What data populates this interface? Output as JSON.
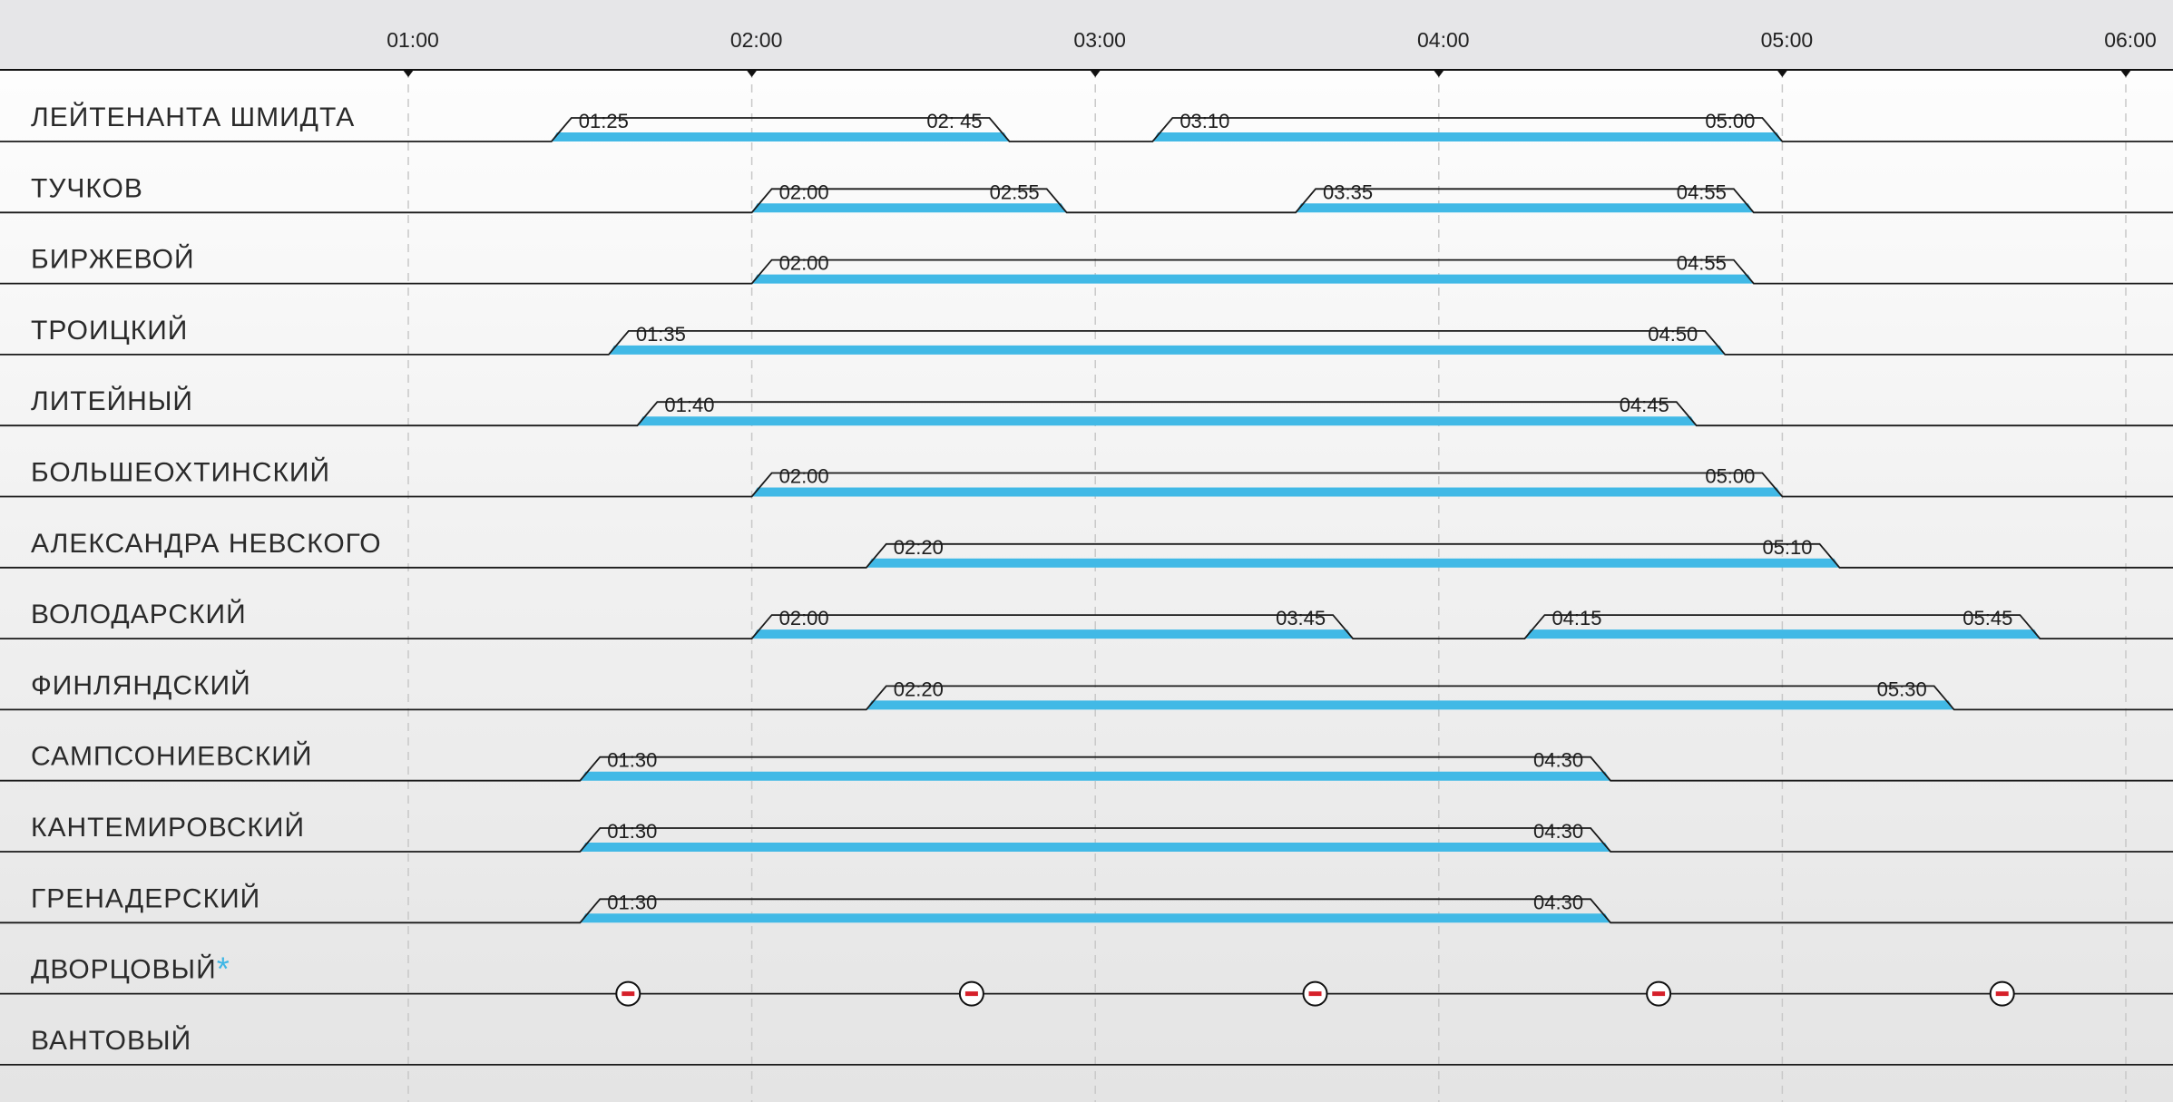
{
  "colors": {
    "bar": "#41b9e6",
    "accent": "#3fb6e5",
    "mark": "#d6202a"
  },
  "chart_data": {
    "type": "gantt",
    "x_ticks": [
      "01:00",
      "02:00",
      "03:00",
      "04:00",
      "05:00",
      "06:00"
    ],
    "rows": [
      {
        "name": "ЛЕЙТЕНАНТА ШМИДТА",
        "intervals": [
          {
            "open": 1.4167,
            "close": 2.75,
            "open_label": "01:25",
            "close_label": "02: 45"
          },
          {
            "open": 3.1667,
            "close": 5.0,
            "open_label": "03:10",
            "close_label": "05:00"
          }
        ]
      },
      {
        "name": "ТУЧКОВ",
        "intervals": [
          {
            "open": 2.0,
            "close": 2.9167,
            "open_label": "02:00",
            "close_label": "02:55"
          },
          {
            "open": 3.5833,
            "close": 4.9167,
            "open_label": "03:35",
            "close_label": "04:55"
          }
        ]
      },
      {
        "name": "БИРЖЕВОЙ",
        "intervals": [
          {
            "open": 2.0,
            "close": 4.9167,
            "open_label": "02:00",
            "close_label": "04:55"
          }
        ]
      },
      {
        "name": "ТРОИЦКИЙ",
        "intervals": [
          {
            "open": 1.5833,
            "close": 4.8333,
            "open_label": "01:35",
            "close_label": "04:50"
          }
        ]
      },
      {
        "name": "ЛИТЕЙНЫЙ",
        "intervals": [
          {
            "open": 1.6667,
            "close": 4.75,
            "open_label": "01:40",
            "close_label": "04:45"
          }
        ]
      },
      {
        "name": "БОЛЬШЕОХТИНСКИЙ",
        "intervals": [
          {
            "open": 2.0,
            "close": 5.0,
            "open_label": "02:00",
            "close_label": "05:00"
          }
        ]
      },
      {
        "name": "АЛЕКСАНДРА НЕВСКОГО",
        "intervals": [
          {
            "open": 2.3333,
            "close": 5.1667,
            "open_label": "02:20",
            "close_label": "05:10"
          }
        ]
      },
      {
        "name": "ВОЛОДАРСКИЙ",
        "intervals": [
          {
            "open": 2.0,
            "close": 3.75,
            "open_label": "02:00",
            "close_label": "03:45"
          },
          {
            "open": 4.25,
            "close": 5.75,
            "open_label": "04:15",
            "close_label": "05:45"
          }
        ]
      },
      {
        "name": "ФИНЛЯНДСКИЙ",
        "intervals": [
          {
            "open": 2.3333,
            "close": 5.5,
            "open_label": "02:20",
            "close_label": "05:30"
          }
        ]
      },
      {
        "name": "САМПСОНИЕВСКИЙ",
        "intervals": [
          {
            "open": 1.5,
            "close": 4.5,
            "open_label": "01:30",
            "close_label": "04:30"
          }
        ]
      },
      {
        "name": "КАНТЕМИРОВСКИЙ",
        "intervals": [
          {
            "open": 1.5,
            "close": 4.5,
            "open_label": "01:30",
            "close_label": "04:30"
          }
        ]
      },
      {
        "name": "ГРЕНАДЕРСКИЙ",
        "intervals": [
          {
            "open": 1.5,
            "close": 4.5,
            "open_label": "01:30",
            "close_label": "04:30"
          }
        ]
      },
      {
        "name": "ДВОРЦОВЫЙ",
        "asterisk": "*",
        "intervals": [],
        "markers": [
          1.64,
          2.64,
          3.64,
          4.64,
          5.64
        ],
        "marker_icon": "no-entry-icon"
      },
      {
        "name": "ВАНТОВЫЙ",
        "intervals": []
      }
    ]
  }
}
